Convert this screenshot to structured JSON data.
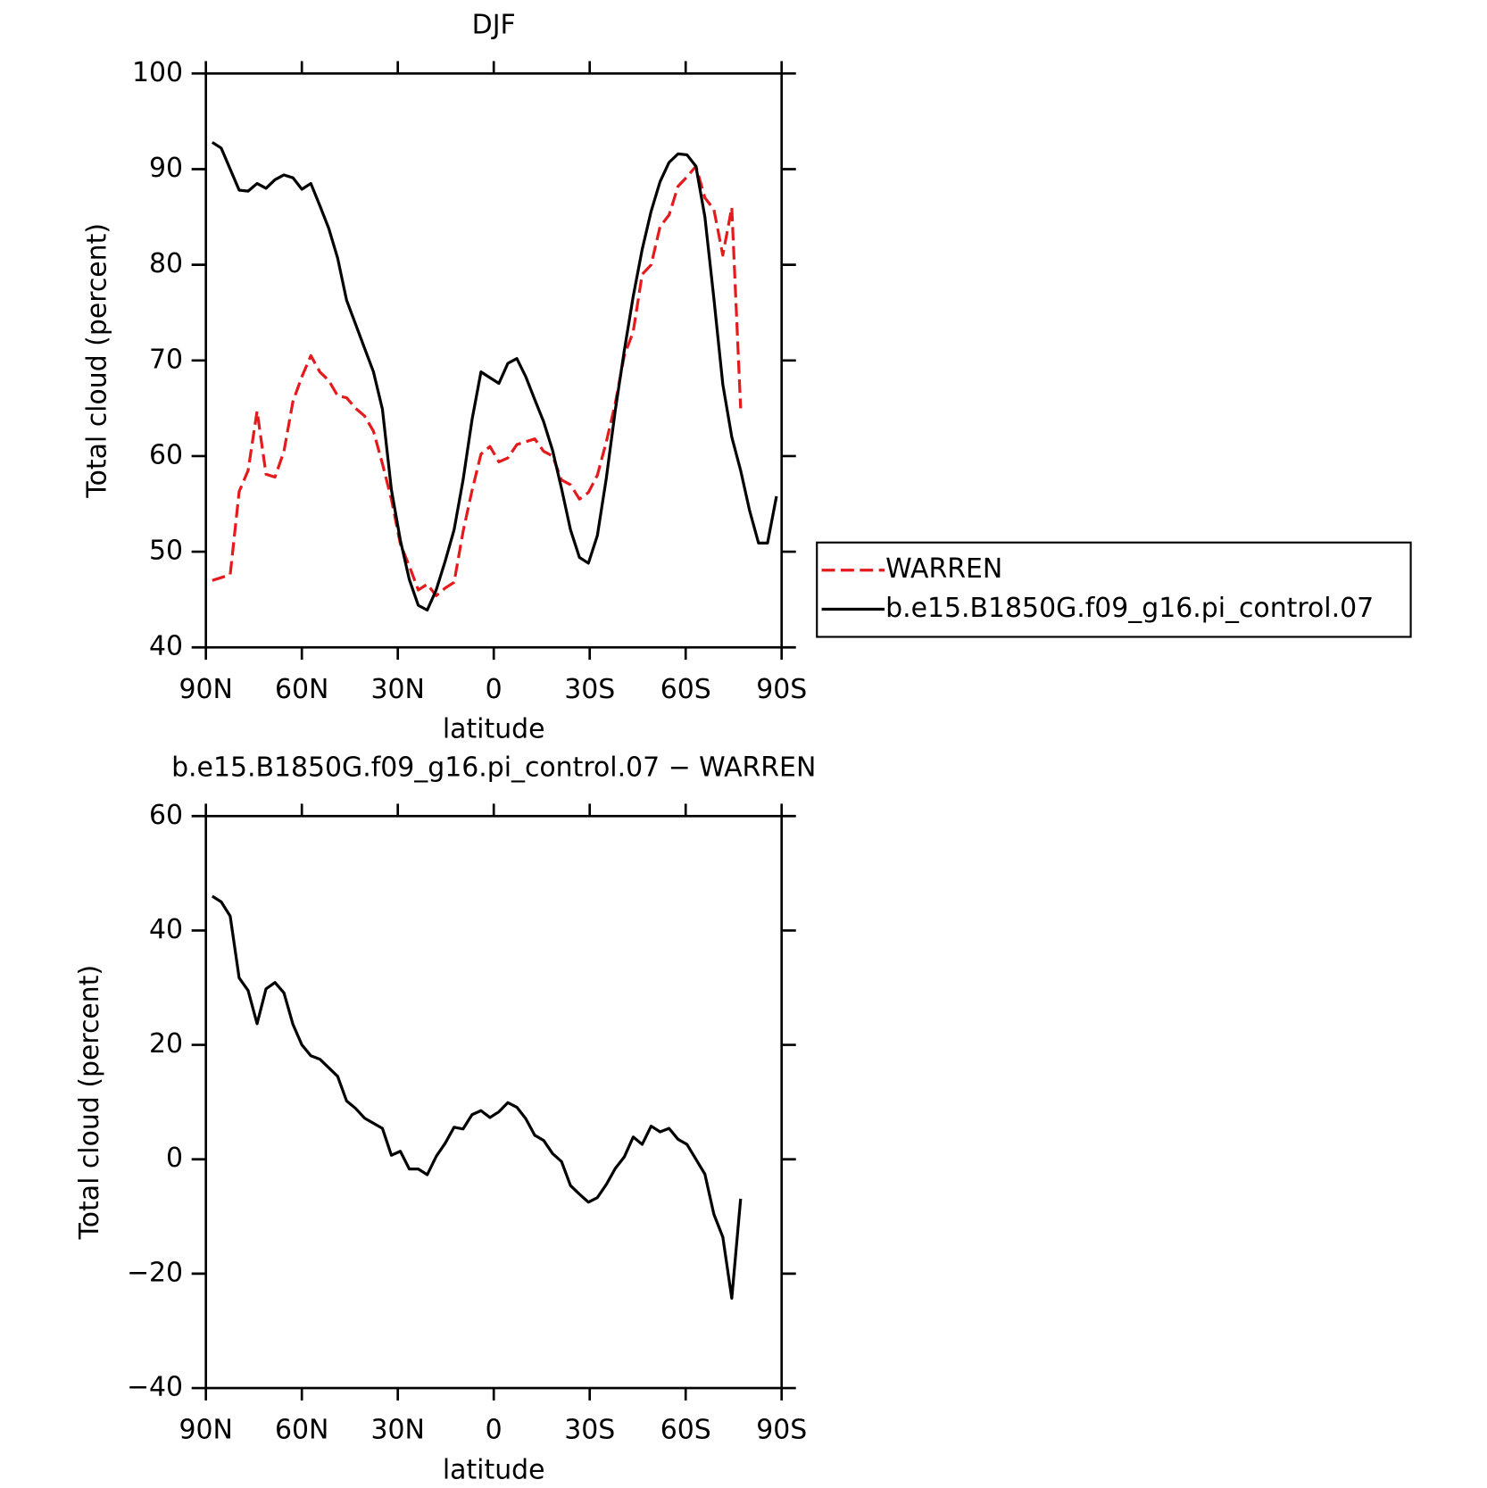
{
  "chart_data": [
    {
      "type": "line",
      "title": "DJF",
      "xlabel": "latitude",
      "ylabel": "Total cloud (percent)",
      "x": [
        88,
        85.2,
        82.4,
        79.6,
        76.8,
        74,
        71.2,
        68.4,
        65.6,
        62.8,
        60,
        57.2,
        54.4,
        51.6,
        48.8,
        46,
        43.2,
        40.4,
        37.6,
        34.8,
        32,
        29.2,
        26.4,
        23.6,
        20.8,
        18,
        15.2,
        12.4,
        9.6,
        6.8,
        4,
        1.2,
        -1.6,
        -4.4,
        -7.2,
        -10,
        -12.8,
        -15.6,
        -18.4,
        -21.2,
        -24,
        -26.8,
        -29.6,
        -32.4,
        -35.2,
        -38,
        -40.8,
        -43.6,
        -46.4,
        -49.2,
        -52,
        -54.8,
        -57.6,
        -60.4,
        -63.2,
        -66,
        -68.8,
        -71.6,
        -74.4,
        -77.2,
        -80,
        -82.8,
        -85.6,
        -88.4
      ],
      "series": [
        {
          "name": "WARREN",
          "color": "#e41a1c",
          "linestyle": "dashed",
          "values": [
            47.0,
            47.3,
            47.6,
            56.3,
            58.5,
            64.7,
            58.1,
            57.8,
            60.5,
            65.7,
            68.3,
            70.5,
            68.8,
            67.9,
            66.3,
            66.1,
            65.0,
            64.2,
            62.6,
            59.2,
            55.5,
            50.8,
            48.5,
            46.0,
            46.6,
            45.4,
            46.2,
            46.8,
            52.1,
            56.4,
            60.2,
            61.0,
            59.4,
            59.8,
            61.2,
            61.5,
            61.8,
            60.5,
            60.0,
            57.5,
            57.0,
            55.5,
            56.2,
            58.0,
            61.5,
            65.5,
            70.5,
            73.0,
            79.0,
            80.0,
            84.0,
            85.2,
            88.2,
            89.2,
            90.3,
            87.0,
            85.8,
            81.0,
            86.0,
            65.0,
            null,
            null,
            null,
            null
          ]
        },
        {
          "name": "b.e15.B1850G.f09_g16.pi_control.07",
          "color": "#000000",
          "linestyle": "solid",
          "values": [
            92.8,
            92.2,
            90.0,
            87.8,
            87.7,
            88.5,
            88.0,
            88.9,
            89.4,
            89.1,
            87.9,
            88.5,
            86.2,
            83.8,
            80.7,
            76.3,
            73.8,
            71.3,
            68.8,
            64.9,
            56.5,
            51.2,
            47.1,
            44.4,
            43.9,
            46.0,
            49.0,
            52.3,
            57.5,
            63.8,
            68.8,
            68.2,
            67.6,
            69.7,
            70.2,
            68.3,
            65.9,
            63.6,
            60.6,
            56.6,
            52.3,
            49.4,
            48.8,
            51.7,
            57.7,
            64.8,
            71.0,
            76.7,
            81.6,
            85.6,
            88.7,
            90.7,
            91.6,
            91.5,
            90.3,
            85.0,
            76.5,
            67.5,
            62.0,
            58.5,
            54.3,
            50.9,
            50.9,
            55.8
          ]
        }
      ],
      "xlim": [
        90,
        -90
      ],
      "xticks": [
        {
          "value": 90,
          "label": "90N"
        },
        {
          "value": 60,
          "label": "60N"
        },
        {
          "value": 30,
          "label": "30N"
        },
        0,
        {
          "value": -30,
          "label": "30S"
        },
        {
          "value": -60,
          "label": "60S"
        },
        {
          "value": -90,
          "label": "90S"
        }
      ],
      "ylim": [
        40,
        100
      ],
      "yticks": [
        40,
        50,
        60,
        70,
        80,
        90,
        100
      ],
      "legend": "right"
    },
    {
      "type": "line",
      "title": "b.e15.B1850G.f09_g16.pi_control.07 − WARREN",
      "xlabel": "latitude",
      "ylabel": "Total cloud (percent)",
      "x": [
        88,
        85.2,
        82.4,
        79.6,
        76.8,
        74,
        71.2,
        68.4,
        65.6,
        62.8,
        60,
        57.2,
        54.4,
        51.6,
        48.8,
        46,
        43.2,
        40.4,
        37.6,
        34.8,
        32,
        29.2,
        26.4,
        23.6,
        20.8,
        18,
        15.2,
        12.4,
        9.6,
        6.8,
        4,
        1.2,
        -1.6,
        -4.4,
        -7.2,
        -10,
        -12.8,
        -15.6,
        -18.4,
        -21.2,
        -24,
        -26.8,
        -29.6,
        -32.4,
        -35.2,
        -38,
        -40.8,
        -43.6,
        -46.4,
        -49.2,
        -52,
        -54.8,
        -57.6,
        -60.4,
        -63.2,
        -66,
        -68.8,
        -71.6,
        -74.4,
        -77.2,
        -80,
        -82.8,
        -85.6,
        -88.4
      ],
      "series": [
        {
          "color": "#000000",
          "linestyle": "solid",
          "values": [
            46.0,
            45.0,
            42.5,
            31.7,
            29.5,
            23.7,
            29.8,
            30.9,
            29.1,
            23.6,
            20.0,
            18.1,
            17.5,
            16.0,
            14.5,
            10.2,
            8.9,
            7.2,
            6.3,
            5.4,
            0.7,
            1.4,
            -1.7,
            -1.7,
            -2.7,
            0.5,
            2.8,
            5.6,
            5.3,
            7.8,
            8.5,
            7.3,
            8.3,
            9.9,
            9.1,
            7.1,
            4.2,
            3.3,
            1.0,
            -0.4,
            -4.6,
            -6.1,
            -7.5,
            -6.7,
            -4.4,
            -1.6,
            0.4,
            3.9,
            2.6,
            5.8,
            4.8,
            5.4,
            3.5,
            2.6,
            0.0,
            -2.6,
            -9.6,
            -13.6,
            -24.3,
            -6.9,
            null,
            null,
            null,
            null
          ]
        }
      ],
      "xlim": [
        90,
        -90
      ],
      "xticks": [
        {
          "value": 90,
          "label": "90N"
        },
        {
          "value": 60,
          "label": "60N"
        },
        {
          "value": 30,
          "label": "30N"
        },
        0,
        {
          "value": -30,
          "label": "30S"
        },
        {
          "value": -60,
          "label": "60S"
        },
        {
          "value": -90,
          "label": "90S"
        }
      ],
      "ylim": [
        -40,
        60
      ],
      "yticks": [
        {
          "value": -40,
          "label": "−40"
        },
        {
          "value": -20,
          "label": "−20"
        },
        0,
        20,
        40,
        60
      ]
    }
  ]
}
